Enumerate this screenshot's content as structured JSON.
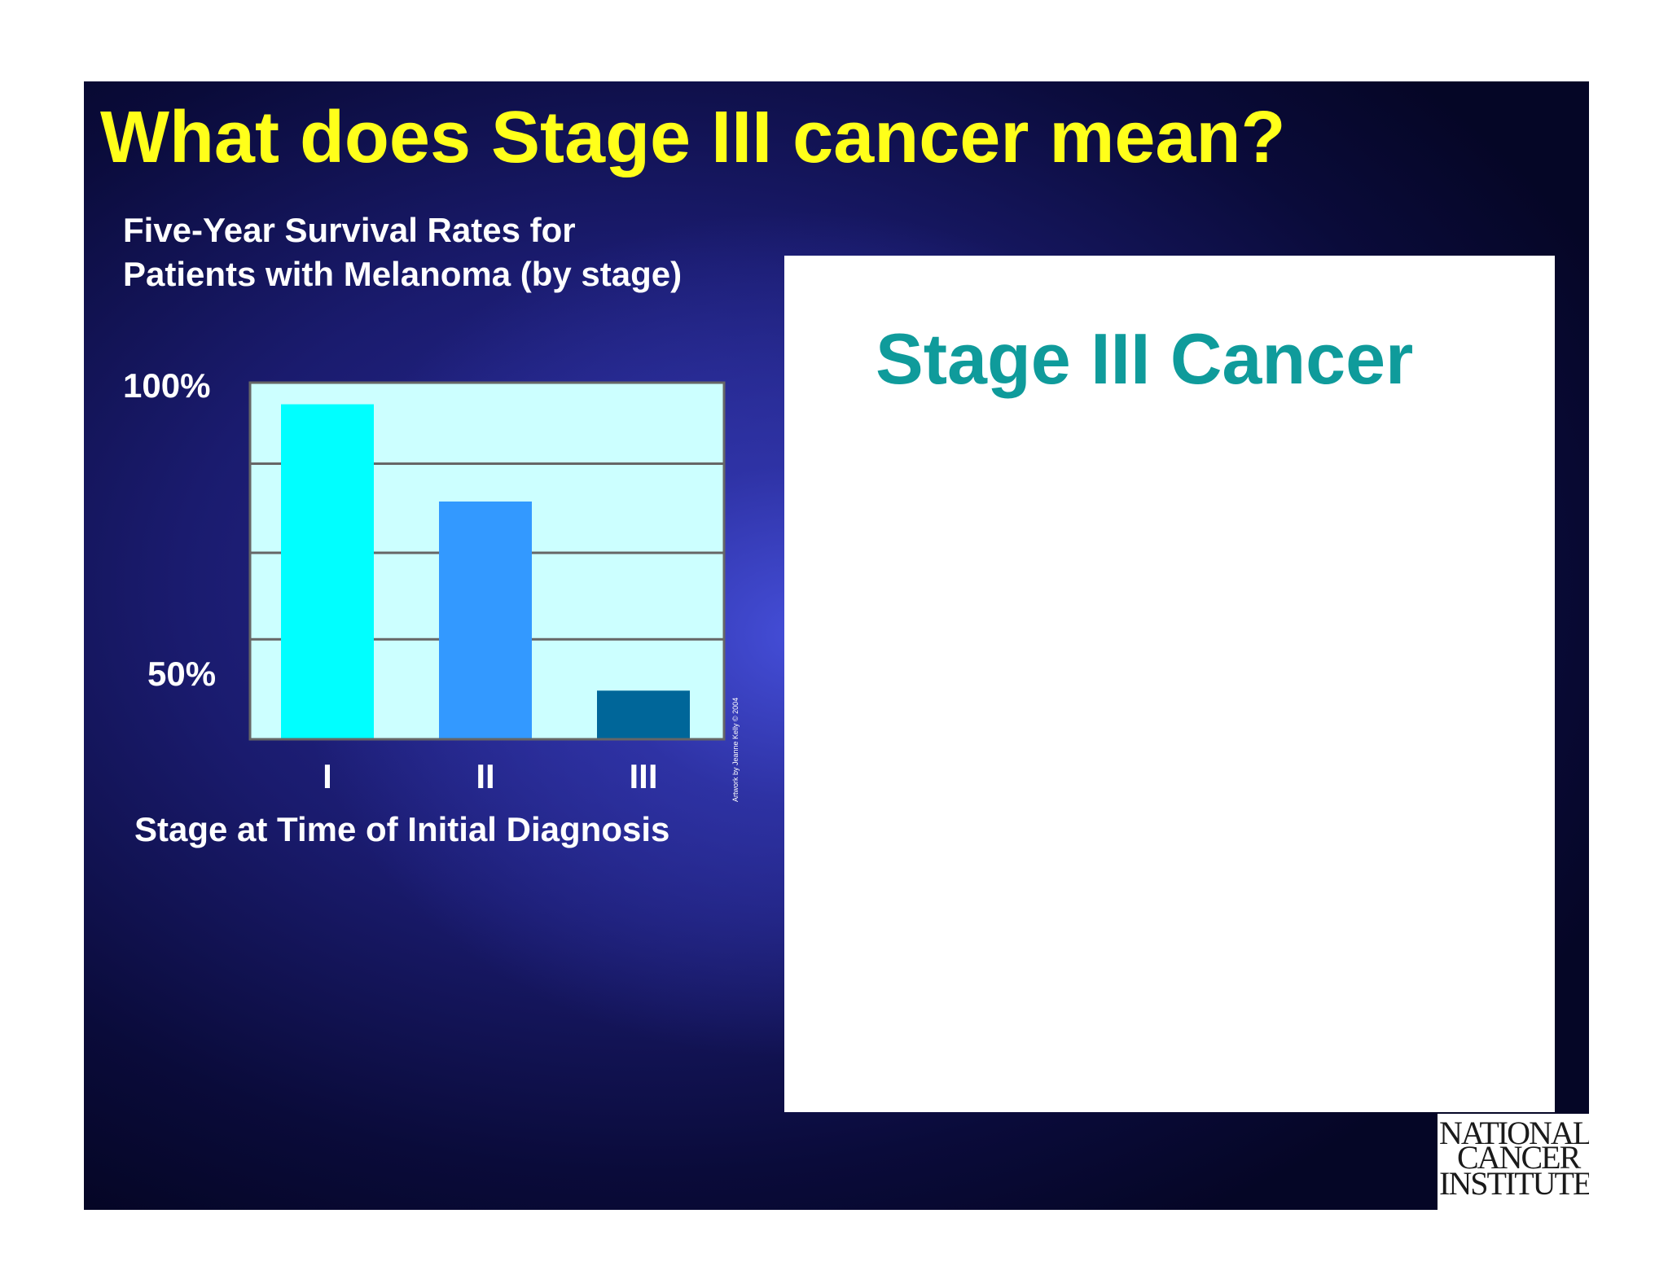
{
  "slide": {
    "title": "What does Stage III cancer mean?",
    "background_color": "#1a1b6e",
    "title_color": "#ffff1a"
  },
  "chart": {
    "title_line1": "Five-Year Survival Rates for",
    "title_line2": "Patients with Melanoma (by stage)",
    "y_tick_100": "100%",
    "y_tick_50": "50%",
    "xlabel": "Stage at Time of Initial Diagnosis",
    "credit": "Artwork by Jeanne Kelly © 2004",
    "plot_bg_color": "#ccffff"
  },
  "chart_data": {
    "type": "bar",
    "title": "Five-Year Survival Rates for Patients with Melanoma (by stage)",
    "xlabel": "Stage at Time of Initial Diagnosis",
    "ylabel": "",
    "categories": [
      "I",
      "II",
      "III"
    ],
    "values": [
      96,
      78,
      43
    ],
    "colors": [
      "#00ffff",
      "#3399ff",
      "#006699"
    ],
    "ylim": [
      34,
      100
    ],
    "yticks": [
      {
        "value": 100,
        "label": "100%"
      },
      {
        "value": 50,
        "label": "50%"
      }
    ],
    "gridlines": [
      85,
      68.5,
      52.5
    ],
    "grid": true,
    "legend": "none"
  },
  "panel": {
    "heading": "Stage III Cancer",
    "heading_color": "#0f9b9b"
  },
  "logo": {
    "line1": "NATIONAL",
    "line2": "CANCER",
    "line3": "INSTITUTE",
    "registered": "®"
  }
}
